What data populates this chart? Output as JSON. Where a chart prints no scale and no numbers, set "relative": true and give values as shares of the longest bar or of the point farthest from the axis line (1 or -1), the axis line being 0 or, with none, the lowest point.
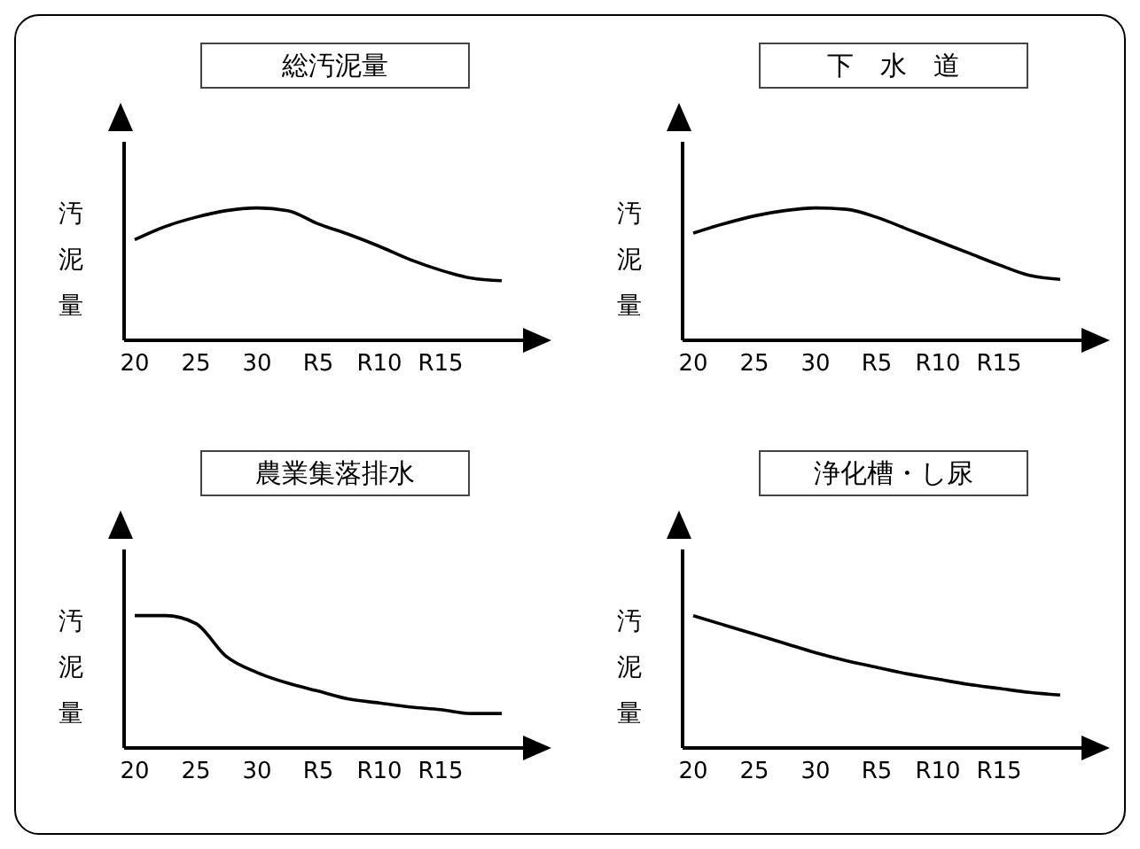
{
  "chart_data": [
    {
      "type": "line",
      "title": "総汚泥量",
      "ylabel": "汚泥量",
      "relative": true,
      "categories": [
        "20",
        null,
        "25",
        null,
        "30",
        null,
        "R5",
        null,
        "R10",
        null,
        "R15",
        null,
        null
      ],
      "series": [
        {
          "color": "#000000",
          "values": [
            0.76,
            0.86,
            0.93,
            0.98,
            1,
            0.98,
            0.88,
            0.8,
            0.71,
            0.61,
            0.53,
            0.47,
            0.45
          ]
        }
      ]
    },
    {
      "type": "line",
      "title": "下　水　道",
      "ylabel": "汚泥量",
      "relative": true,
      "categories": [
        "20",
        null,
        "25",
        null,
        "30",
        null,
        "R5",
        null,
        "R10",
        null,
        "R15",
        null,
        null
      ],
      "series": [
        {
          "color": "#000000",
          "values": [
            0.81,
            0.88,
            0.94,
            0.98,
            1,
            0.99,
            0.93,
            0.84,
            0.75,
            0.66,
            0.57,
            0.49,
            0.46
          ]
        }
      ]
    },
    {
      "type": "line",
      "title": "農業集落排水",
      "ylabel": "汚泥量",
      "relative": true,
      "categories": [
        "20",
        null,
        "25",
        null,
        "30",
        null,
        "R5",
        null,
        "R10",
        null,
        "R15",
        null,
        null
      ],
      "series": [
        {
          "color": "#000000",
          "values": [
            1,
            1,
            0.94,
            0.69,
            0.57,
            0.49,
            0.43,
            0.37,
            0.34,
            0.31,
            0.29,
            0.26,
            0.26
          ]
        }
      ]
    },
    {
      "type": "line",
      "title": "浄化槽・し尿",
      "ylabel": "汚泥量",
      "relative": true,
      "categories": [
        "20",
        null,
        "25",
        null,
        "30",
        null,
        "R5",
        null,
        "R10",
        null,
        "R15",
        null,
        null
      ],
      "series": [
        {
          "color": "#000000",
          "values": [
            1,
            0.93,
            0.86,
            0.79,
            0.72,
            0.66,
            0.61,
            0.56,
            0.52,
            0.48,
            0.45,
            0.42,
            0.4
          ]
        }
      ]
    }
  ]
}
